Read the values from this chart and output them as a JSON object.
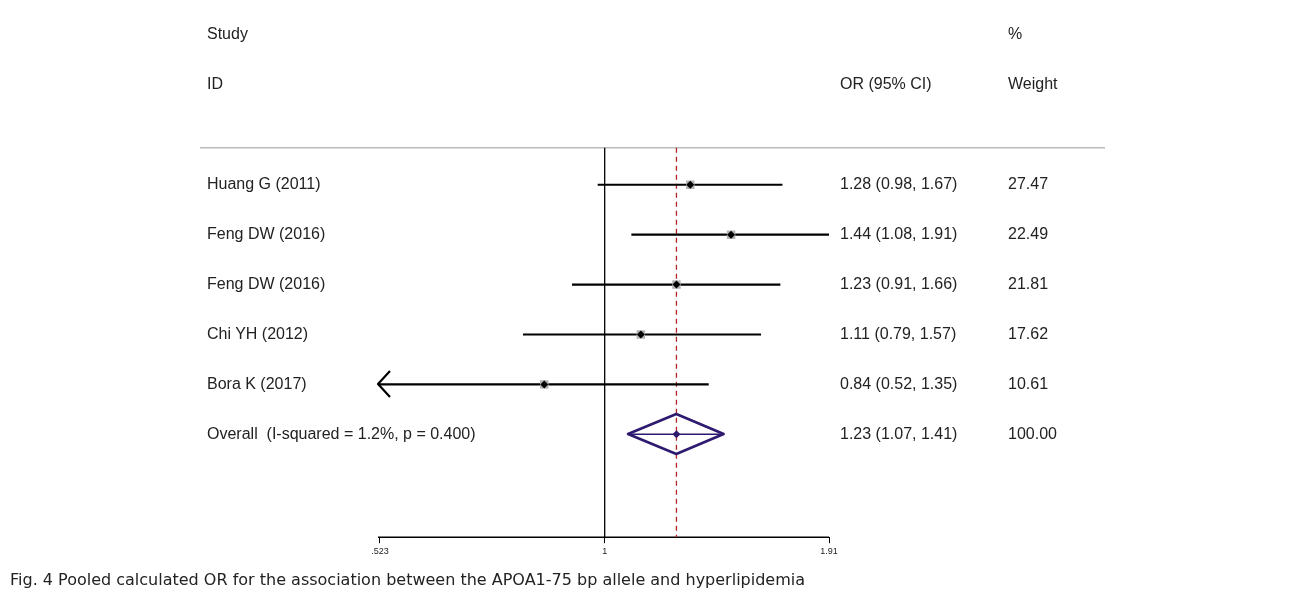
{
  "chart_data": {
    "type": "scatter",
    "orientation": "horizontal",
    "categories": [
      "Huang G (2011)",
      "Feng DW (2016)",
      "Feng DW (2016)",
      "Chi YH (2012)",
      "Bora K (2017)",
      "Overall  (I-squared = 1.2%, p = 0.400)"
    ],
    "series": [
      {
        "marker": "square",
        "color": "#b3b3b3",
        "values": [
          1.28,
          1.44,
          1.23,
          1.11,
          0.84,
          null
        ],
        "errors": [
          [
            0.98,
            1.67
          ],
          [
            1.08,
            1.91
          ],
          [
            0.91,
            1.66
          ],
          [
            0.79,
            1.57
          ],
          [
            0.52,
            1.35
          ],
          null
        ]
      },
      {
        "marker": "diamond",
        "color": "#2e1a6e",
        "values": [
          null,
          null,
          null,
          null,
          null,
          1.23
        ],
        "errors": [
          null,
          null,
          null,
          null,
          null,
          [
            1.07,
            1.41
          ]
        ]
      }
    ],
    "log": "x",
    "xlim": [
      0.52,
      1.91
    ],
    "xticks": [
      {
        "value": 0.523,
        "label": ".523"
      },
      1,
      1.91
    ],
    "ref_lines": [
      {
        "axis": "x",
        "value": 1,
        "color": "#000000",
        "line_style": "solid"
      },
      {
        "axis": "x",
        "value": 1.23,
        "color": "#b22222",
        "line_style": "dashed"
      }
    ],
    "grid": false,
    "legend": false,
    "annotations": [
      "Study",
      "%",
      "ID",
      "OR (95% CI)",
      "Weight",
      "1.28 (0.98, 1.67)",
      "1.44 (1.08, 1.91)",
      "1.23 (0.91, 1.66)",
      "1.11 (0.79, 1.57)",
      "0.84 (0.52, 1.35)",
      "1.23 (1.07, 1.41)",
      "27.47",
      "22.49",
      "21.81",
      "17.62",
      "10.61",
      "100.00",
      "Fig. 4 Pooled calculated OR for the association between the APOA1-75 bp allele and hyperlipidemia"
    ]
  }
}
